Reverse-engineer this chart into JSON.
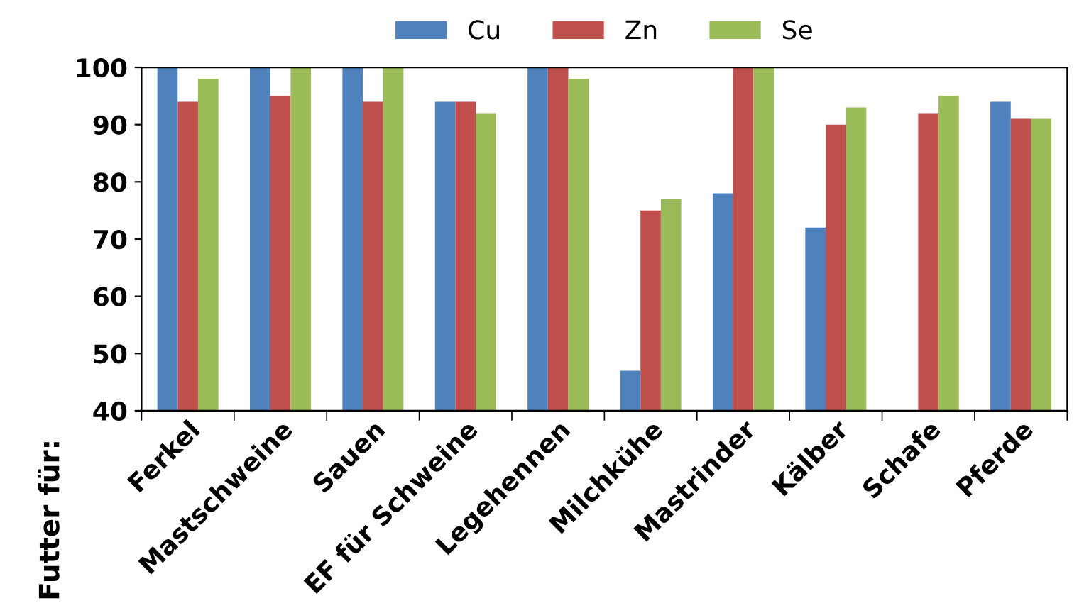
{
  "chart_data": {
    "type": "bar",
    "annotations": [
      "Futter für:"
    ],
    "categories": [
      "Ferkel",
      "Mastschweine",
      "Sauen",
      "EF für Schweine",
      "Legehennen",
      "Milchkühe",
      "Mastrinder",
      "Kälber",
      "Schafe",
      "Pferde"
    ],
    "series": [
      {
        "name": "Cu",
        "color": "#4f81bd",
        "values": [
          100,
          100,
          100,
          94,
          100,
          47,
          78,
          72,
          null,
          94
        ]
      },
      {
        "name": "Zn",
        "color": "#c0504d",
        "values": [
          94,
          95,
          94,
          94,
          100,
          75,
          100,
          90,
          92,
          91
        ]
      },
      {
        "name": "Se",
        "color": "#9bbb59",
        "values": [
          98,
          100,
          100,
          92,
          98,
          77,
          100,
          93,
          95,
          91
        ]
      }
    ],
    "ylim": [
      40,
      100
    ],
    "yticks": [
      40,
      50,
      60,
      70,
      80,
      90,
      100
    ],
    "grid": false,
    "legend": "top"
  }
}
